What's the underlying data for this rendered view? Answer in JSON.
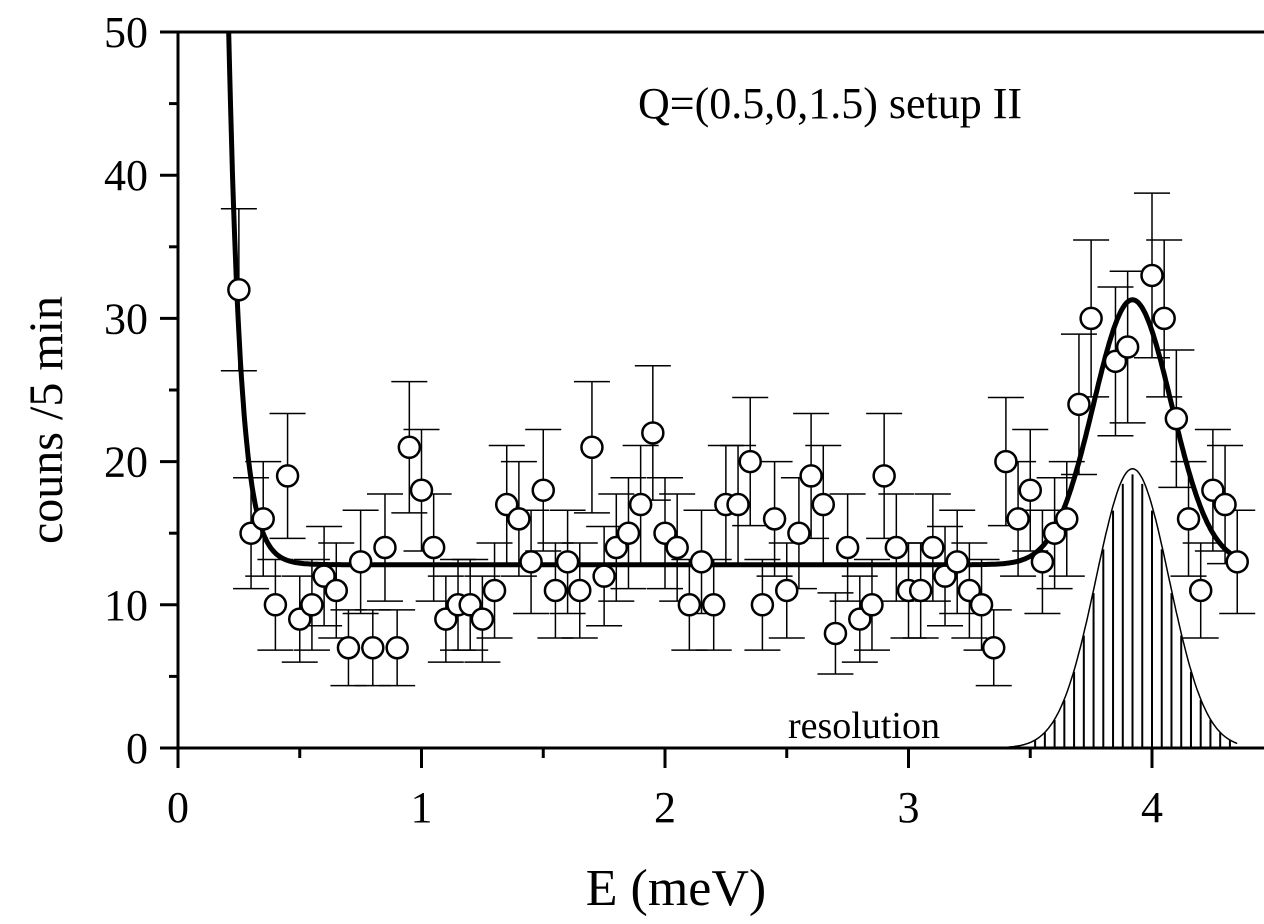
{
  "chart_data": {
    "type": "scatter",
    "title": "Q=(0.5,0,1.5) setup II",
    "xlabel": "E (meV)",
    "ylabel": "couns /5 min",
    "xlim": [
      0,
      4.5
    ],
    "ylim": [
      0,
      50
    ],
    "x_ticks": [
      "0",
      "1",
      "2",
      "3",
      "4"
    ],
    "y_ticks": [
      "0",
      "10",
      "20",
      "30",
      "40",
      "50"
    ],
    "grid": false,
    "annotations": [
      "resolution"
    ],
    "series": [
      {
        "kind": "points-with-error",
        "marker": "open-circle",
        "points": [
          [
            0.25,
            32
          ],
          [
            0.3,
            15
          ],
          [
            0.35,
            16
          ],
          [
            0.4,
            10
          ],
          [
            0.45,
            19
          ],
          [
            0.5,
            9
          ],
          [
            0.55,
            10
          ],
          [
            0.6,
            12
          ],
          [
            0.65,
            11
          ],
          [
            0.7,
            7
          ],
          [
            0.75,
            13
          ],
          [
            0.8,
            7
          ],
          [
            0.85,
            14
          ],
          [
            0.9,
            7
          ],
          [
            0.95,
            21
          ],
          [
            1.0,
            18
          ],
          [
            1.05,
            14
          ],
          [
            1.1,
            9
          ],
          [
            1.15,
            10
          ],
          [
            1.2,
            10
          ],
          [
            1.25,
            9
          ],
          [
            1.3,
            11
          ],
          [
            1.35,
            17
          ],
          [
            1.4,
            16
          ],
          [
            1.45,
            13
          ],
          [
            1.5,
            18
          ],
          [
            1.55,
            11
          ],
          [
            1.6,
            13
          ],
          [
            1.65,
            11
          ],
          [
            1.7,
            21
          ],
          [
            1.75,
            12
          ],
          [
            1.8,
            14
          ],
          [
            1.85,
            15
          ],
          [
            1.9,
            17
          ],
          [
            1.95,
            22
          ],
          [
            2.0,
            15
          ],
          [
            2.05,
            14
          ],
          [
            2.1,
            10
          ],
          [
            2.15,
            13
          ],
          [
            2.2,
            10
          ],
          [
            2.25,
            17
          ],
          [
            2.3,
            17
          ],
          [
            2.35,
            20
          ],
          [
            2.4,
            10
          ],
          [
            2.45,
            16
          ],
          [
            2.5,
            11
          ],
          [
            2.55,
            15
          ],
          [
            2.6,
            19
          ],
          [
            2.65,
            17
          ],
          [
            2.7,
            8
          ],
          [
            2.75,
            14
          ],
          [
            2.8,
            9
          ],
          [
            2.85,
            10
          ],
          [
            2.9,
            19
          ],
          [
            2.95,
            14
          ],
          [
            3.0,
            11
          ],
          [
            3.05,
            11
          ],
          [
            3.1,
            14
          ],
          [
            3.15,
            12
          ],
          [
            3.2,
            13
          ],
          [
            3.25,
            11
          ],
          [
            3.3,
            10
          ],
          [
            3.35,
            7
          ],
          [
            3.4,
            20
          ],
          [
            3.45,
            16
          ],
          [
            3.5,
            18
          ],
          [
            3.55,
            13
          ],
          [
            3.6,
            15
          ],
          [
            3.65,
            16
          ],
          [
            3.7,
            24
          ],
          [
            3.75,
            30
          ],
          [
            3.85,
            27
          ],
          [
            3.9,
            28
          ],
          [
            4.0,
            33
          ],
          [
            4.05,
            30
          ],
          [
            4.1,
            23
          ],
          [
            4.15,
            16
          ],
          [
            4.2,
            11
          ],
          [
            4.25,
            18
          ],
          [
            4.3,
            17
          ],
          [
            4.35,
            13
          ]
        ]
      },
      {
        "kind": "fit-line",
        "baseline": 12.8,
        "elastic_amplitude": 2400,
        "elastic_decay": 0.05,
        "peak_center": 3.92,
        "peak_amplitude": 18.5,
        "peak_sigma": 0.16,
        "x_range": [
          0.1,
          4.35
        ]
      },
      {
        "kind": "resolution-curve",
        "center": 3.92,
        "amplitude": 19.5,
        "sigma": 0.15,
        "x_range": [
          3.35,
          4.35
        ],
        "bar_spacing": 0.04
      }
    ]
  }
}
